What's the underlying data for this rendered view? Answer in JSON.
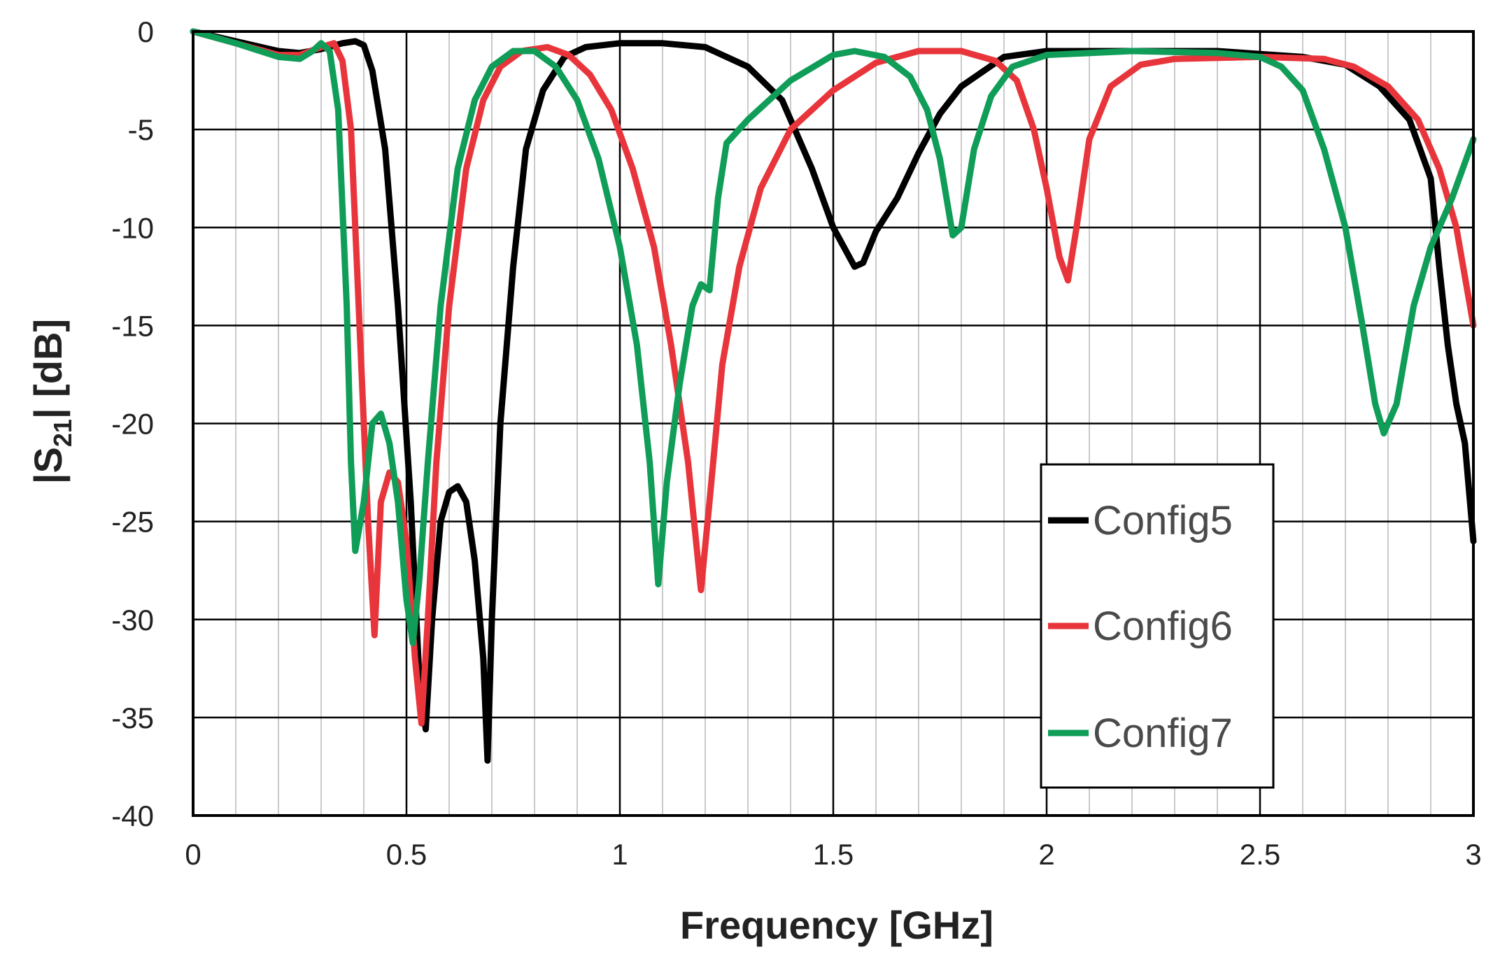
{
  "chart_data": {
    "type": "line",
    "xlabel": "Frequency [GHz]",
    "ylabel": {
      "main": "|S",
      "sub": "21",
      "rest": "| [dB]"
    },
    "xlim": [
      0,
      3
    ],
    "ylim": [
      -40,
      0
    ],
    "x_ticks": [
      0,
      0.5,
      1,
      1.5,
      2,
      2.5,
      3
    ],
    "x_tick_labels": [
      "0",
      "0.5",
      "1",
      "1.5",
      "2",
      "2.5",
      "3"
    ],
    "y_ticks": [
      0,
      -5,
      -10,
      -15,
      -20,
      -25,
      -30,
      -35,
      -40
    ],
    "y_tick_labels": [
      "0",
      "-5",
      "-10",
      "-15",
      "-20",
      "-25",
      "-30",
      "-35",
      "-40"
    ],
    "x_minor_step": 0.1,
    "grid": true,
    "legend_position": "bottom-right",
    "series": [
      {
        "name": "Config5",
        "color": "#000000",
        "points": [
          [
            0,
            0
          ],
          [
            0.1,
            -0.5
          ],
          [
            0.2,
            -1.0
          ],
          [
            0.25,
            -1.1
          ],
          [
            0.3,
            -0.9
          ],
          [
            0.35,
            -0.6
          ],
          [
            0.38,
            -0.5
          ],
          [
            0.4,
            -0.7
          ],
          [
            0.42,
            -2
          ],
          [
            0.45,
            -6
          ],
          [
            0.48,
            -14
          ],
          [
            0.51,
            -24
          ],
          [
            0.53,
            -33
          ],
          [
            0.545,
            -35.6
          ],
          [
            0.56,
            -30
          ],
          [
            0.58,
            -25
          ],
          [
            0.6,
            -23.5
          ],
          [
            0.62,
            -23.2
          ],
          [
            0.64,
            -24
          ],
          [
            0.66,
            -27
          ],
          [
            0.68,
            -32
          ],
          [
            0.69,
            -37.2
          ],
          [
            0.7,
            -30
          ],
          [
            0.72,
            -20
          ],
          [
            0.75,
            -12
          ],
          [
            0.78,
            -6
          ],
          [
            0.82,
            -3
          ],
          [
            0.87,
            -1.3
          ],
          [
            0.92,
            -0.8
          ],
          [
            1,
            -0.6
          ],
          [
            1.1,
            -0.6
          ],
          [
            1.2,
            -0.8
          ],
          [
            1.3,
            -1.8
          ],
          [
            1.38,
            -3.5
          ],
          [
            1.45,
            -7
          ],
          [
            1.5,
            -10
          ],
          [
            1.55,
            -12
          ],
          [
            1.57,
            -11.8
          ],
          [
            1.6,
            -10.2
          ],
          [
            1.65,
            -8.5
          ],
          [
            1.7,
            -6.2
          ],
          [
            1.75,
            -4.2
          ],
          [
            1.8,
            -2.8
          ],
          [
            1.9,
            -1.3
          ],
          [
            2,
            -1.0
          ],
          [
            2.2,
            -1.0
          ],
          [
            2.4,
            -1.0
          ],
          [
            2.6,
            -1.3
          ],
          [
            2.7,
            -1.7
          ],
          [
            2.78,
            -2.8
          ],
          [
            2.85,
            -4.5
          ],
          [
            2.9,
            -7.5
          ],
          [
            2.92,
            -12
          ],
          [
            2.94,
            -16
          ],
          [
            2.96,
            -19
          ],
          [
            2.98,
            -21
          ],
          [
            3,
            -26
          ]
        ]
      },
      {
        "name": "Config6",
        "color": "#e8353b",
        "points": [
          [
            0,
            0
          ],
          [
            0.1,
            -0.6
          ],
          [
            0.2,
            -1.2
          ],
          [
            0.25,
            -1.2
          ],
          [
            0.3,
            -0.8
          ],
          [
            0.33,
            -0.6
          ],
          [
            0.35,
            -1.5
          ],
          [
            0.37,
            -5
          ],
          [
            0.39,
            -15
          ],
          [
            0.41,
            -25
          ],
          [
            0.425,
            -30.8
          ],
          [
            0.44,
            -24
          ],
          [
            0.46,
            -22.5
          ],
          [
            0.48,
            -23
          ],
          [
            0.5,
            -26
          ],
          [
            0.52,
            -32
          ],
          [
            0.535,
            -35.3
          ],
          [
            0.55,
            -30
          ],
          [
            0.57,
            -22
          ],
          [
            0.6,
            -14
          ],
          [
            0.64,
            -7
          ],
          [
            0.68,
            -3.5
          ],
          [
            0.72,
            -1.8
          ],
          [
            0.77,
            -1.0
          ],
          [
            0.83,
            -0.8
          ],
          [
            0.88,
            -1.2
          ],
          [
            0.93,
            -2.2
          ],
          [
            0.98,
            -4
          ],
          [
            1.03,
            -7
          ],
          [
            1.08,
            -11
          ],
          [
            1.12,
            -16
          ],
          [
            1.16,
            -22
          ],
          [
            1.19,
            -28.5
          ],
          [
            1.21,
            -24
          ],
          [
            1.24,
            -17
          ],
          [
            1.28,
            -12
          ],
          [
            1.33,
            -8
          ],
          [
            1.4,
            -5
          ],
          [
            1.5,
            -3
          ],
          [
            1.6,
            -1.6
          ],
          [
            1.7,
            -1.0
          ],
          [
            1.8,
            -1.0
          ],
          [
            1.88,
            -1.5
          ],
          [
            1.93,
            -2.5
          ],
          [
            1.97,
            -5
          ],
          [
            2.0,
            -8
          ],
          [
            2.03,
            -11.5
          ],
          [
            2.05,
            -12.7
          ],
          [
            2.07,
            -10
          ],
          [
            2.1,
            -5.5
          ],
          [
            2.15,
            -2.8
          ],
          [
            2.22,
            -1.7
          ],
          [
            2.3,
            -1.4
          ],
          [
            2.5,
            -1.3
          ],
          [
            2.65,
            -1.4
          ],
          [
            2.72,
            -1.8
          ],
          [
            2.8,
            -2.8
          ],
          [
            2.87,
            -4.5
          ],
          [
            2.92,
            -7
          ],
          [
            2.96,
            -10
          ],
          [
            3,
            -15
          ]
        ]
      },
      {
        "name": "Config7",
        "color": "#0f9d58",
        "points": [
          [
            0,
            0
          ],
          [
            0.1,
            -0.6
          ],
          [
            0.2,
            -1.3
          ],
          [
            0.25,
            -1.4
          ],
          [
            0.28,
            -1.0
          ],
          [
            0.3,
            -0.6
          ],
          [
            0.32,
            -1.0
          ],
          [
            0.34,
            -4
          ],
          [
            0.36,
            -14
          ],
          [
            0.37,
            -22
          ],
          [
            0.38,
            -26.5
          ],
          [
            0.4,
            -24
          ],
          [
            0.42,
            -20
          ],
          [
            0.44,
            -19.5
          ],
          [
            0.46,
            -21
          ],
          [
            0.48,
            -24
          ],
          [
            0.5,
            -29
          ],
          [
            0.515,
            -31.2
          ],
          [
            0.53,
            -28
          ],
          [
            0.55,
            -22
          ],
          [
            0.58,
            -14
          ],
          [
            0.62,
            -7
          ],
          [
            0.66,
            -3.5
          ],
          [
            0.7,
            -1.8
          ],
          [
            0.75,
            -1.0
          ],
          [
            0.8,
            -1.0
          ],
          [
            0.85,
            -1.8
          ],
          [
            0.9,
            -3.5
          ],
          [
            0.95,
            -6.5
          ],
          [
            1,
            -11
          ],
          [
            1.04,
            -16
          ],
          [
            1.07,
            -22
          ],
          [
            1.09,
            -28.2
          ],
          [
            1.11,
            -23
          ],
          [
            1.14,
            -18
          ],
          [
            1.17,
            -14
          ],
          [
            1.19,
            -12.9
          ],
          [
            1.21,
            -13.2
          ],
          [
            1.23,
            -8.5
          ],
          [
            1.25,
            -5.7
          ],
          [
            1.3,
            -4.5
          ],
          [
            1.4,
            -2.5
          ],
          [
            1.5,
            -1.2
          ],
          [
            1.55,
            -1.0
          ],
          [
            1.62,
            -1.3
          ],
          [
            1.68,
            -2.3
          ],
          [
            1.72,
            -4
          ],
          [
            1.75,
            -6.5
          ],
          [
            1.78,
            -10.4
          ],
          [
            1.8,
            -10
          ],
          [
            1.83,
            -6
          ],
          [
            1.87,
            -3.3
          ],
          [
            1.92,
            -1.8
          ],
          [
            2,
            -1.2
          ],
          [
            2.2,
            -1.0
          ],
          [
            2.4,
            -1.1
          ],
          [
            2.5,
            -1.3
          ],
          [
            2.55,
            -1.8
          ],
          [
            2.6,
            -3
          ],
          [
            2.65,
            -6
          ],
          [
            2.7,
            -10
          ],
          [
            2.74,
            -15
          ],
          [
            2.77,
            -19
          ],
          [
            2.79,
            -20.5
          ],
          [
            2.82,
            -19
          ],
          [
            2.86,
            -14
          ],
          [
            2.9,
            -11
          ],
          [
            2.95,
            -8.5
          ],
          [
            3,
            -5.5
          ]
        ]
      }
    ]
  }
}
